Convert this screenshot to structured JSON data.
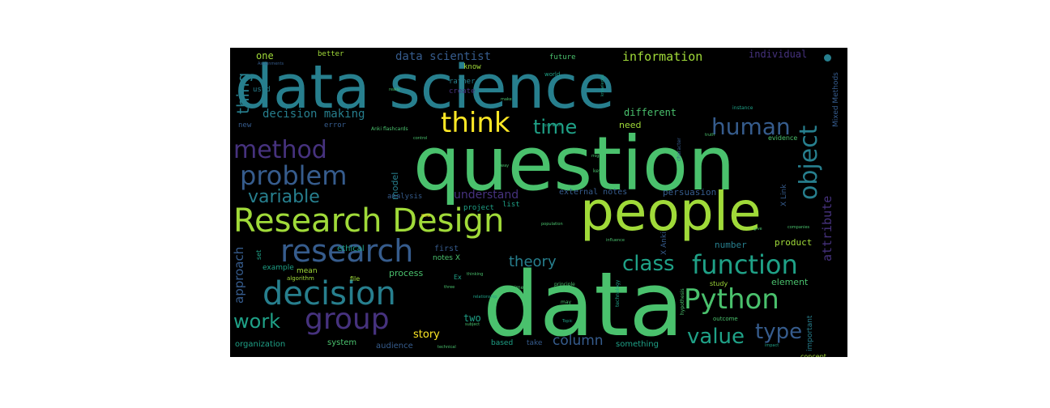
{
  "colors": {
    "page_background": "#ffffff",
    "cloud_background": "#000000",
    "palette": [
      "#440154",
      "#46327e",
      "#365c8d",
      "#277f8e",
      "#1fa187",
      "#4ac16d",
      "#a0da39",
      "#fde725"
    ]
  },
  "word_cloud": {
    "words": [
      {
        "text": "data science",
        "color": "#277f8e",
        "weight": 100
      },
      {
        "text": "question",
        "color": "#4ac16d",
        "weight": 100
      },
      {
        "text": "data",
        "color": "#4ac16d",
        "weight": 100
      },
      {
        "text": "people",
        "color": "#a0da39",
        "weight": 85
      },
      {
        "text": "Research Design",
        "color": "#a0da39",
        "weight": 60
      },
      {
        "text": "research",
        "color": "#365c8d",
        "weight": 55
      },
      {
        "text": "decision",
        "color": "#277f8e",
        "weight": 55
      },
      {
        "text": "problem",
        "color": "#365c8d",
        "weight": 50
      },
      {
        "text": "group",
        "color": "#46327e",
        "weight": 50
      },
      {
        "text": "method",
        "color": "#46327e",
        "weight": 45
      },
      {
        "text": "Python",
        "color": "#4ac16d",
        "weight": 45
      },
      {
        "text": "think",
        "color": "#fde725",
        "weight": 45
      },
      {
        "text": "object",
        "color": "#277f8e",
        "weight": 40
      },
      {
        "text": "function",
        "color": "#1fa187",
        "weight": 38
      },
      {
        "text": "human",
        "color": "#365c8d",
        "weight": 35
      },
      {
        "text": "time",
        "color": "#1fa187",
        "weight": 35
      },
      {
        "text": "class",
        "color": "#1fa187",
        "weight": 32
      },
      {
        "text": "variable",
        "color": "#277f8e",
        "weight": 30
      },
      {
        "text": "type",
        "color": "#365c8d",
        "weight": 32
      },
      {
        "text": "work",
        "color": "#1fa187",
        "weight": 30
      },
      {
        "text": "value",
        "color": "#1fa187",
        "weight": 30
      },
      {
        "text": "thing",
        "color": "#277f8e",
        "weight": 25
      },
      {
        "text": "theory",
        "color": "#277f8e",
        "weight": 22
      },
      {
        "text": "column",
        "color": "#365c8d",
        "weight": 20
      },
      {
        "text": "approach",
        "color": "#365c8d",
        "weight": 20
      },
      {
        "text": "decision making",
        "color": "#277f8e",
        "weight": 18
      },
      {
        "text": "data scientist",
        "color": "#365c8d",
        "weight": 18
      },
      {
        "text": "information",
        "color": "#a0da39",
        "weight": 18
      },
      {
        "text": "attribute",
        "color": "#46327e",
        "weight": 18
      },
      {
        "text": "understand",
        "color": "#46327e",
        "weight": 16
      },
      {
        "text": "story",
        "color": "#fde725",
        "weight": 16
      },
      {
        "text": "individual",
        "color": "#46327e",
        "weight": 14
      },
      {
        "text": "one",
        "color": "#a0da39",
        "weight": 14
      },
      {
        "text": "two",
        "color": "#1fa187",
        "weight": 14
      },
      {
        "text": "different",
        "color": "#4ac16d",
        "weight": 13
      },
      {
        "text": "need",
        "color": "#a0da39",
        "weight": 13
      },
      {
        "text": "model",
        "color": "#277f8e",
        "weight": 13
      },
      {
        "text": "process",
        "color": "#4ac16d",
        "weight": 13
      },
      {
        "text": "element",
        "color": "#4ac16d",
        "weight": 13
      },
      {
        "text": "persuasion",
        "color": "#365c8d",
        "weight": 12
      },
      {
        "text": "external notes",
        "color": "#365c8d",
        "weight": 12
      },
      {
        "text": "product",
        "color": "#a0da39",
        "weight": 12
      },
      {
        "text": "number",
        "color": "#277f8e",
        "weight": 12
      },
      {
        "text": "organization",
        "color": "#1fa187",
        "weight": 11
      },
      {
        "text": "system",
        "color": "#4ac16d",
        "weight": 11
      },
      {
        "text": "audience",
        "color": "#365c8d",
        "weight": 11
      },
      {
        "text": "something",
        "color": "#1fa187",
        "weight": 11
      },
      {
        "text": "Mixed Methods",
        "color": "#365c8d",
        "weight": 11
      },
      {
        "text": "X Link",
        "color": "#365c8d",
        "weight": 11
      },
      {
        "text": "X Anki",
        "color": "#365c8d",
        "weight": 11
      },
      {
        "text": "notes X",
        "color": "#4ac16d",
        "weight": 10
      },
      {
        "text": "first",
        "color": "#365c8d",
        "weight": 10
      },
      {
        "text": "better",
        "color": "#a0da39",
        "weight": 10
      },
      {
        "text": "know",
        "color": "#a0da39",
        "weight": 10
      },
      {
        "text": "future",
        "color": "#4ac16d",
        "weight": 10
      },
      {
        "text": "rather",
        "color": "#277f8e",
        "weight": 10
      },
      {
        "text": "used",
        "color": "#277f8e",
        "weight": 10
      },
      {
        "text": "analysis",
        "color": "#365c8d",
        "weight": 10
      },
      {
        "text": "project",
        "color": "#1fa187",
        "weight": 9
      },
      {
        "text": "list",
        "color": "#1fa187",
        "weight": 9
      },
      {
        "text": "ethical",
        "color": "#1fa187",
        "weight": 9
      },
      {
        "text": "mean",
        "color": "#a0da39",
        "weight": 9
      },
      {
        "text": "example",
        "color": "#1fa187",
        "weight": 9
      },
      {
        "text": "algorithm",
        "color": "#a0da39",
        "weight": 8
      },
      {
        "text": "error",
        "color": "#365c8d",
        "weight": 9
      },
      {
        "text": "new",
        "color": "#365c8d",
        "weight": 9
      },
      {
        "text": "create",
        "color": "#46327e",
        "weight": 9
      },
      {
        "text": "based",
        "color": "#1fa187",
        "weight": 9
      },
      {
        "text": "take",
        "color": "#365c8d",
        "weight": 9
      },
      {
        "text": "important",
        "color": "#277f8e",
        "weight": 9
      },
      {
        "text": "concept",
        "color": "#a0da39",
        "weight": 8
      },
      {
        "text": "study",
        "color": "#a0da39",
        "weight": 8
      },
      {
        "text": "evidence",
        "color": "#4ac16d",
        "weight": 8
      },
      {
        "text": "set",
        "color": "#1fa187",
        "weight": 8
      },
      {
        "text": "file",
        "color": "#a0da39",
        "weight": 8
      },
      {
        "text": "Ex",
        "color": "#1fa187",
        "weight": 8
      },
      {
        "text": "Anki flashcards",
        "color": "#4ac16d",
        "weight": 6
      },
      {
        "text": "outcome",
        "color": "#4ac16d",
        "weight": 7
      },
      {
        "text": "world",
        "color": "#1fa187",
        "weight": 7
      },
      {
        "text": "key",
        "color": "#4ac16d",
        "weight": 6
      },
      {
        "text": "instance",
        "color": "#1fa187",
        "weight": 6
      },
      {
        "text": "principle",
        "color": "#4ac16d",
        "weight": 6
      },
      {
        "text": "technology",
        "color": "#1fa187",
        "weight": 6
      },
      {
        "text": "hypothesis",
        "color": "#4ac16d",
        "weight": 6
      },
      {
        "text": "experiment",
        "color": "#4ac16d",
        "weight": 6
      },
      {
        "text": "population",
        "color": "#4ac16d",
        "weight": 6
      },
      {
        "text": "character",
        "color": "#365c8d",
        "weight": 6
      },
      {
        "text": "knowledge",
        "color": "#1fa187",
        "weight": 6
      },
      {
        "text": "relationship",
        "color": "#1fa187",
        "weight": 6
      },
      {
        "text": "influence",
        "color": "#4ac16d",
        "weight": 6
      },
      {
        "text": "operation",
        "color": "#1fa187",
        "weight": 6
      },
      {
        "text": "companies",
        "color": "#4ac16d",
        "weight": 6
      },
      {
        "text": "really",
        "color": "#4ac16d",
        "weight": 5
      },
      {
        "text": "make",
        "color": "#4ac16d",
        "weight": 5
      },
      {
        "text": "field",
        "color": "#fde725",
        "weight": 5
      },
      {
        "text": "subject",
        "color": "#4ac16d",
        "weight": 5
      },
      {
        "text": "three",
        "color": "#4ac16d",
        "weight": 5
      },
      {
        "text": "Topic",
        "color": "#1fa187",
        "weight": 5
      },
      {
        "text": "impact",
        "color": "#1fa187",
        "weight": 5
      },
      {
        "text": "technical",
        "color": "#4ac16d",
        "weight": 5
      },
      {
        "text": "give",
        "color": "#4ac16d",
        "weight": 5
      },
      {
        "text": "may",
        "color": "#4ac16d",
        "weight": 6
      },
      {
        "text": "control",
        "color": "#4ac16d",
        "weight": 5
      },
      {
        "text": "thinking",
        "color": "#4ac16d",
        "weight": 5
      },
      {
        "text": "truth",
        "color": "#4ac16d",
        "weight": 5
      },
      {
        "text": "might",
        "color": "#4ac16d",
        "weight": 5
      },
      {
        "text": "way",
        "color": "#4ac16d",
        "weight": 5
      },
      {
        "text": "Assignments",
        "color": "#365c8d",
        "weight": 5
      }
    ],
    "dot_color": "#277f8e"
  }
}
